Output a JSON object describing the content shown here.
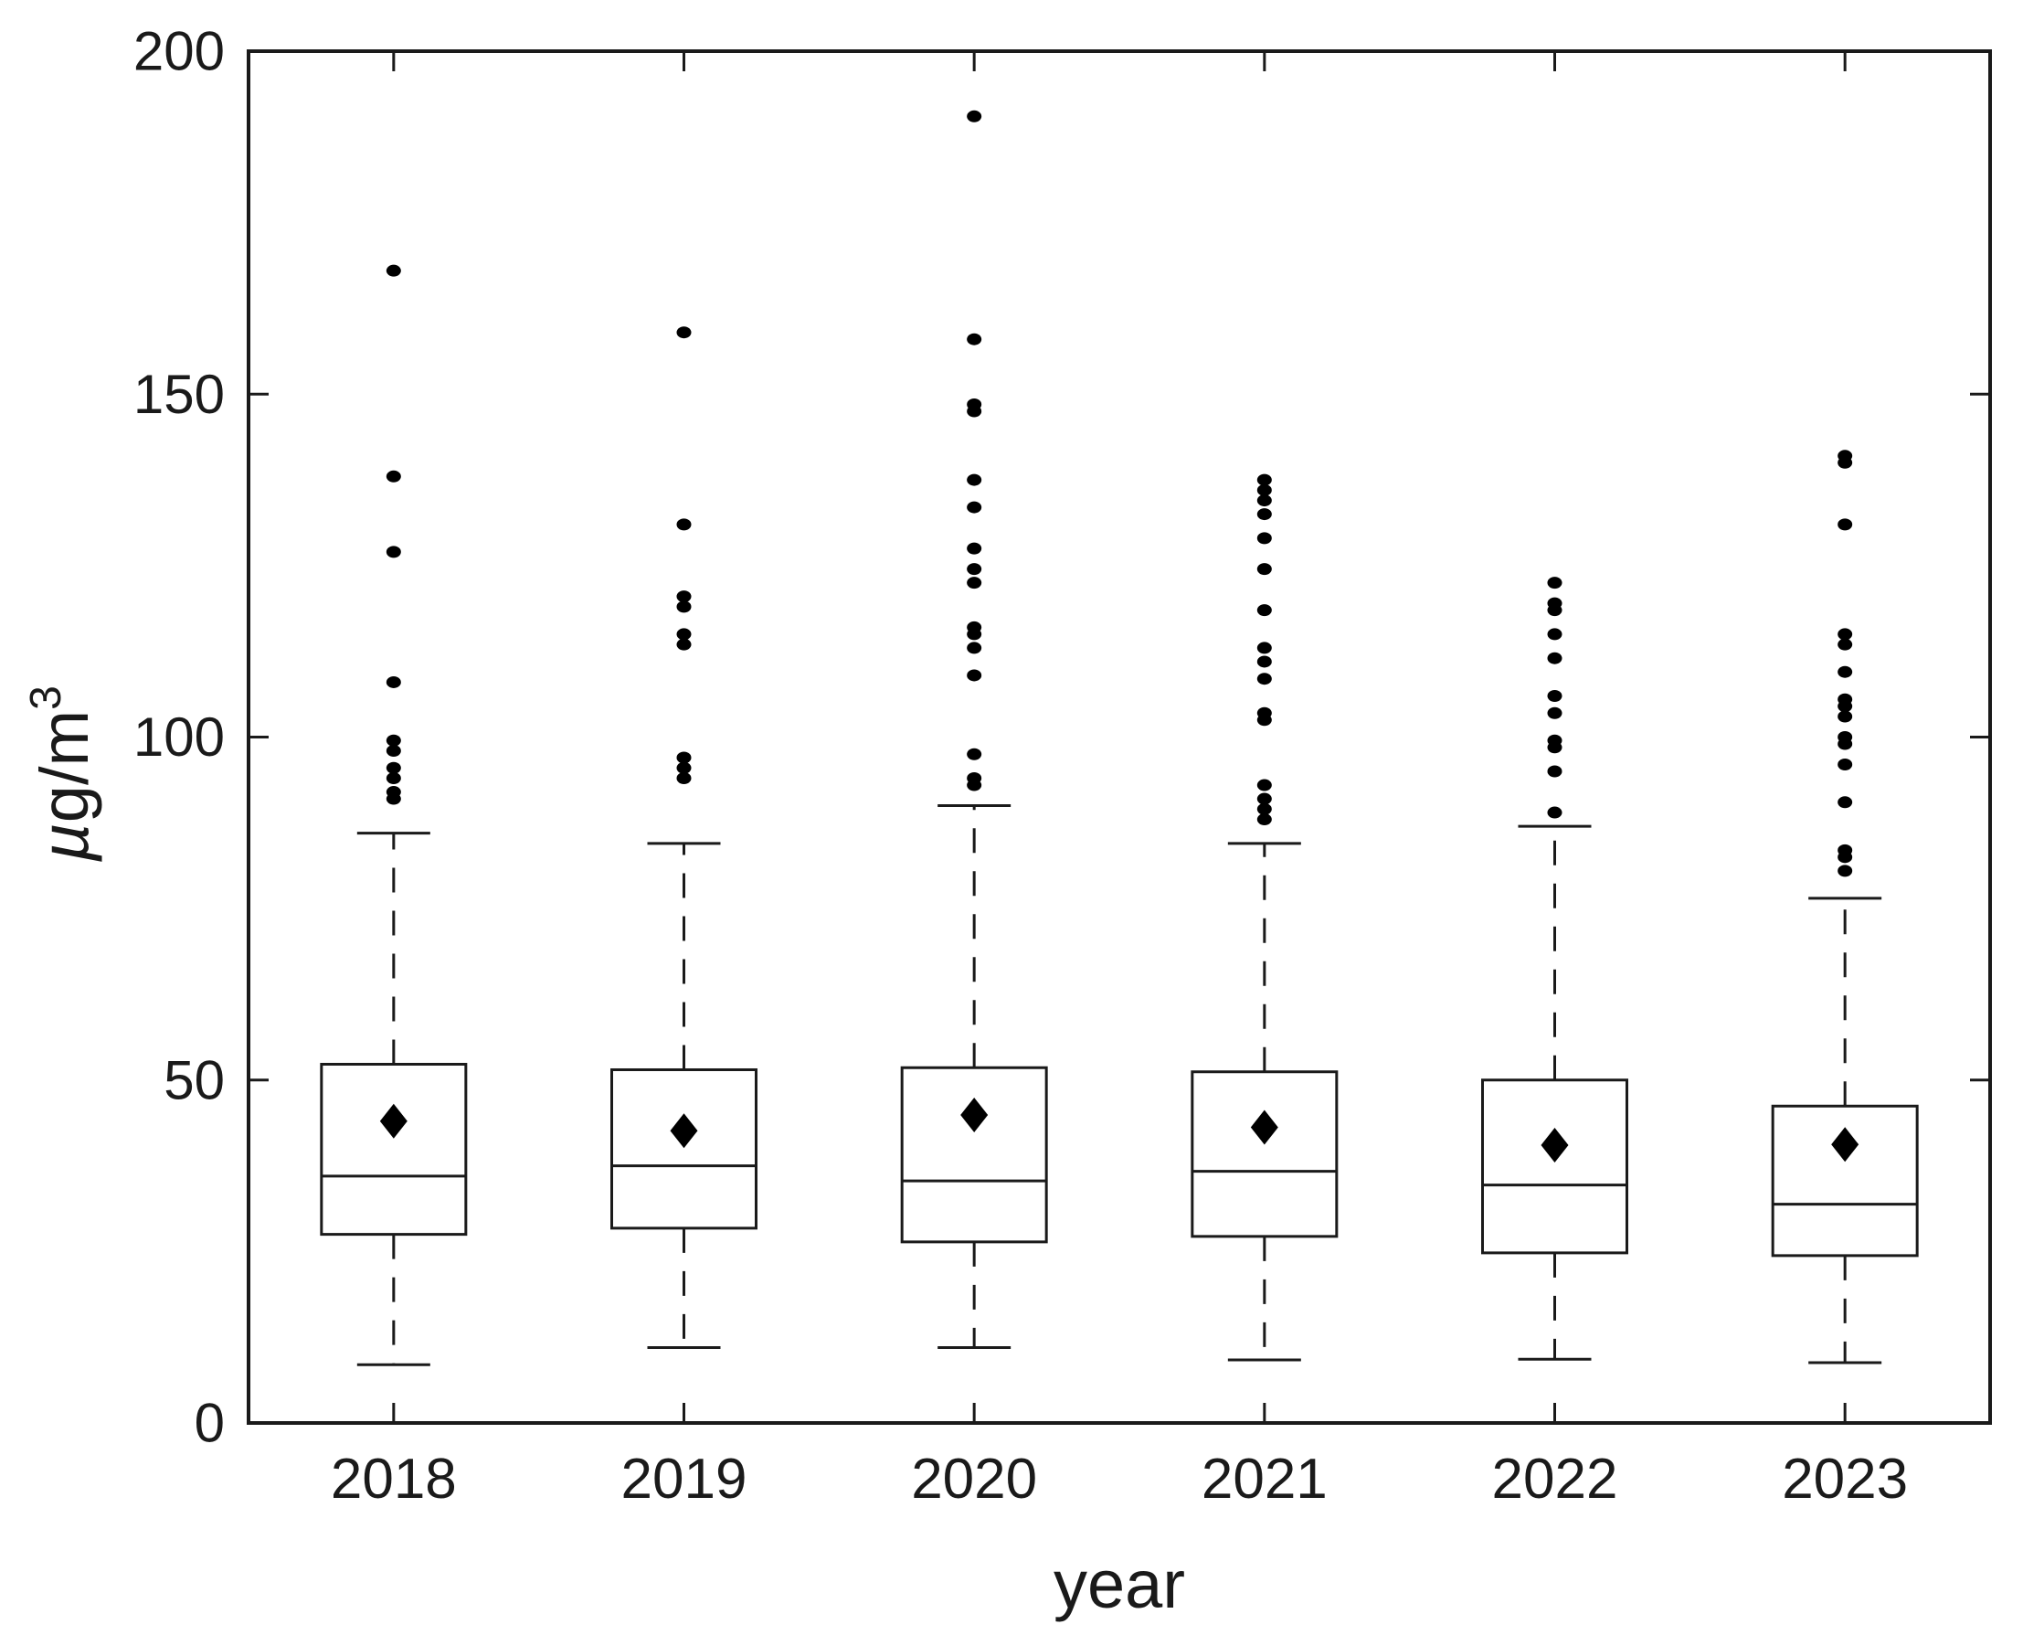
{
  "colors": {
    "background": "#ffffff",
    "ink": "#1a1a1a",
    "marker": "#000000"
  },
  "chart_data": {
    "type": "box",
    "title": "",
    "xlabel": "year",
    "ylabel": "µg/m³",
    "ylabel_parts": {
      "mu": "µ",
      "rest": "g/m",
      "exponent": "3"
    },
    "ylim": [
      0,
      200
    ],
    "y_ticks": [
      0,
      50,
      100,
      150,
      200
    ],
    "y_tick_labels": [
      "0",
      "50",
      "100",
      "150",
      "200"
    ],
    "categories": [
      "2018",
      "2019",
      "2020",
      "2021",
      "2022",
      "2023"
    ],
    "grid": false,
    "legend": "none",
    "boxes": [
      {
        "label": "2018",
        "q1": 27.5,
        "median": 36.0,
        "q3": 52.3,
        "mean": 44.0,
        "whisker_low": 8.5,
        "whisker_high": 86.0,
        "outliers": [
          168,
          138,
          127,
          108,
          99.5,
          98,
          95.5,
          94,
          92,
          91
        ]
      },
      {
        "label": "2019",
        "q1": 28.4,
        "median": 37.5,
        "q3": 51.5,
        "mean": 42.6,
        "whisker_low": 11.0,
        "whisker_high": 84.5,
        "outliers": [
          159,
          131,
          120.5,
          119,
          115,
          113.5,
          97,
          95.5,
          94
        ]
      },
      {
        "label": "2020",
        "q1": 26.4,
        "median": 35.3,
        "q3": 51.8,
        "mean": 44.9,
        "whisker_low": 11.0,
        "whisker_high": 90.0,
        "outliers": [
          190.5,
          158,
          148.5,
          147.5,
          137.5,
          133.5,
          127.5,
          124.5,
          122.5,
          116,
          115,
          113,
          109,
          97.5,
          94,
          93
        ]
      },
      {
        "label": "2021",
        "q1": 27.2,
        "median": 36.7,
        "q3": 51.2,
        "mean": 43.1,
        "whisker_low": 9.2,
        "whisker_high": 84.5,
        "outliers": [
          137.5,
          136,
          134.5,
          132.5,
          129,
          124.5,
          118.5,
          113,
          111,
          108.5,
          103.5,
          102.5,
          93,
          91,
          89.5,
          88
        ]
      },
      {
        "label": "2022",
        "q1": 24.8,
        "median": 34.7,
        "q3": 50.0,
        "mean": 40.5,
        "whisker_low": 9.3,
        "whisker_high": 87.0,
        "outliers": [
          122.5,
          119.5,
          118.5,
          115,
          111.5,
          106,
          103.5,
          99.5,
          98.5,
          95,
          89
        ]
      },
      {
        "label": "2023",
        "q1": 24.4,
        "median": 31.9,
        "q3": 46.2,
        "mean": 40.6,
        "whisker_low": 8.8,
        "whisker_high": 76.5,
        "outliers": [
          141,
          140,
          131,
          115,
          113.5,
          109.5,
          105.5,
          104.5,
          103,
          100,
          99,
          96,
          90.5,
          83.5,
          82.5,
          80.5
        ]
      }
    ]
  }
}
